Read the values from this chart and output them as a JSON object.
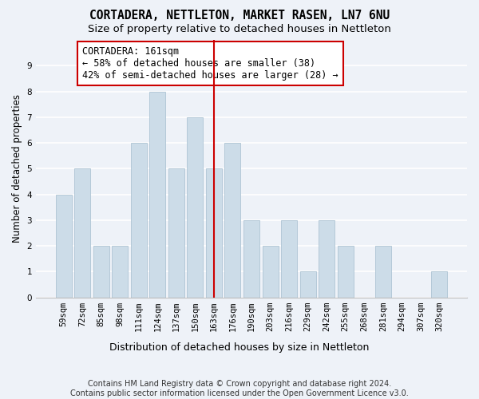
{
  "title": "CORTADERA, NETTLETON, MARKET RASEN, LN7 6NU",
  "subtitle": "Size of property relative to detached houses in Nettleton",
  "xlabel_bottom": "Distribution of detached houses by size in Nettleton",
  "ylabel": "Number of detached properties",
  "footnote": "Contains HM Land Registry data © Crown copyright and database right 2024.\nContains public sector information licensed under the Open Government Licence v3.0.",
  "categories": [
    "59sqm",
    "72sqm",
    "85sqm",
    "98sqm",
    "111sqm",
    "124sqm",
    "137sqm",
    "150sqm",
    "163sqm",
    "176sqm",
    "190sqm",
    "203sqm",
    "216sqm",
    "229sqm",
    "242sqm",
    "255sqm",
    "268sqm",
    "281sqm",
    "294sqm",
    "307sqm",
    "320sqm"
  ],
  "values": [
    4,
    5,
    2,
    2,
    6,
    8,
    5,
    7,
    5,
    6,
    3,
    2,
    3,
    1,
    3,
    2,
    0,
    2,
    0,
    0,
    1
  ],
  "bar_color": "#ccdce8",
  "bar_edge_color": "#aec4d4",
  "vline_x": 8,
  "vline_color": "#cc0000",
  "annotation_text": "CORTADERA: 161sqm\n← 58% of detached houses are smaller (38)\n42% of semi-detached houses are larger (28) →",
  "annotation_box_edgecolor": "#cc0000",
  "annotation_box_facecolor": "#ffffff",
  "ylim": [
    0,
    10
  ],
  "yticks": [
    0,
    1,
    2,
    3,
    4,
    5,
    6,
    7,
    8,
    9,
    10
  ],
  "background_color": "#eef2f8",
  "grid_color": "#ffffff",
  "title_fontsize": 10.5,
  "subtitle_fontsize": 9.5,
  "axis_label_fontsize": 8.5,
  "tick_fontsize": 7.5,
  "annotation_fontsize": 8.5,
  "footnote_fontsize": 7.0
}
